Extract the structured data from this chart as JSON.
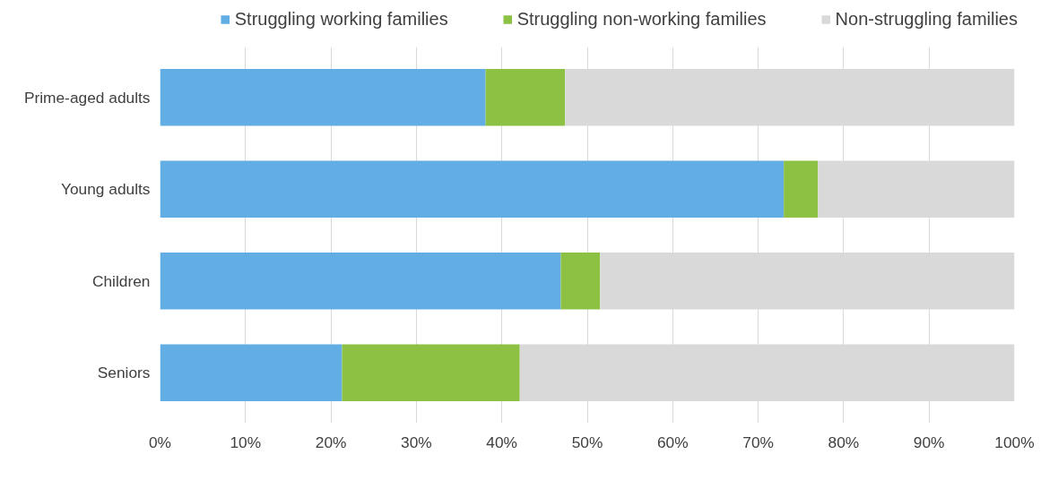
{
  "chart_data": {
    "type": "bar",
    "orientation": "horizontal",
    "stacked": true,
    "categories": [
      "Prime-aged adults",
      "Young adults",
      "Children",
      "Seniors"
    ],
    "series": [
      {
        "name": "Struggling working families",
        "color": "#61ade4",
        "values": [
          38.1,
          73.0,
          46.9,
          21.3
        ]
      },
      {
        "name": "Struggling non-working families",
        "color": "#8cc144",
        "values": [
          9.3,
          4.0,
          4.6,
          20.8
        ]
      },
      {
        "name": "Non-struggling families",
        "color": "#d9d9d9",
        "values": [
          52.6,
          23.0,
          48.5,
          57.9
        ]
      }
    ],
    "xlim": [
      0,
      100
    ],
    "xticks": [
      {
        "value": 0,
        "label": "0%"
      },
      {
        "value": 10,
        "label": "10%"
      },
      {
        "value": 20,
        "label": "20%"
      },
      {
        "value": 30,
        "label": "30%"
      },
      {
        "value": 40,
        "label": "40%"
      },
      {
        "value": 50,
        "label": "50%"
      },
      {
        "value": 60,
        "label": "60%"
      },
      {
        "value": 70,
        "label": "70%"
      },
      {
        "value": 80,
        "label": "80%"
      },
      {
        "value": 90,
        "label": "90%"
      },
      {
        "value": 100,
        "label": "100%"
      }
    ],
    "grid": "x",
    "legend": "top"
  }
}
